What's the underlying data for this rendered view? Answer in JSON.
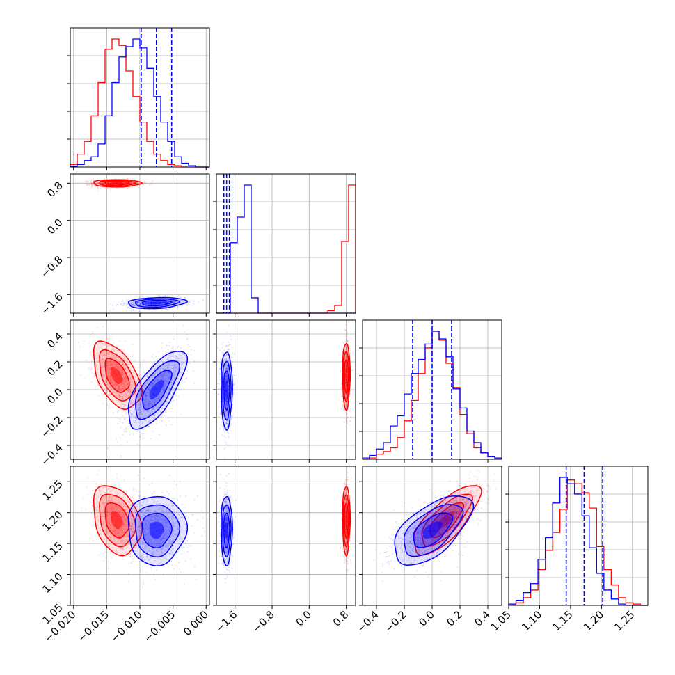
{
  "chart_data": {
    "type": "corner",
    "parameters": 4,
    "grid": true,
    "colors": {
      "series_a": "#0000ff",
      "series_b": "#ff0000"
    },
    "series": [
      {
        "color": "#0000ff",
        "means": [
          -0.0075,
          -1.78,
          0.0,
          1.172
        ],
        "sds": [
          0.0022,
          0.06,
          0.14,
          0.028
        ],
        "quantile_lines": true
      },
      {
        "color": "#ff0000",
        "means": [
          -0.0135,
          0.8,
          0.1,
          1.188
        ],
        "sds": [
          0.0018,
          0.04,
          0.12,
          0.028
        ],
        "quantile_lines": false
      }
    ],
    "quantiles": [
      [
        -0.0098,
        -0.0075,
        -0.0052
      ],
      [
        -1.84,
        -1.78,
        -1.72
      ],
      [
        -0.14,
        0.0,
        0.14
      ],
      [
        1.143,
        1.172,
        1.202
      ]
    ],
    "axis_ranges": [
      [
        -0.0205,
        0.0005
      ],
      [
        -2.0,
        1.0
      ],
      [
        -0.5,
        0.5
      ],
      [
        1.05,
        1.275
      ]
    ],
    "tick_labels": [
      [
        "−0.020",
        "−0.015",
        "−0.010",
        "−0.005",
        "0.000"
      ],
      [
        "−1.6",
        "−0.8",
        "0.0",
        "0.8"
      ],
      [
        "−0.4",
        "−0.2",
        "0.0",
        "0.2",
        "0.4"
      ],
      [
        "1.05",
        "1.10",
        "1.15",
        "1.20",
        "1.25"
      ]
    ],
    "tick_values": [
      [
        -0.02,
        -0.015,
        -0.01,
        -0.005,
        0.0
      ],
      [
        -1.6,
        -0.8,
        0.0,
        0.8
      ],
      [
        -0.4,
        -0.2,
        0.0,
        0.2,
        0.4
      ],
      [
        1.05,
        1.1,
        1.15,
        1.2,
        1.25
      ]
    ],
    "marginal_histograms": {
      "blue_p1": [
        0.005,
        0.02,
        0.05,
        0.08,
        0.18,
        0.4,
        0.66,
        0.86,
        0.94,
        1.0,
        0.93,
        0.77,
        0.55,
        0.35,
        0.2,
        0.08,
        0.03,
        0.01,
        0.0,
        0.0
      ],
      "red_p1": [
        0.02,
        0.1,
        0.2,
        0.4,
        0.66,
        0.92,
        1.0,
        0.95,
        0.75,
        0.55,
        0.35,
        0.2,
        0.1,
        0.05,
        0.02,
        0.01,
        0.0,
        0.0,
        0.0,
        0.0
      ],
      "blue_p2": [
        0.0,
        0.0,
        0.55,
        0.75,
        1.0,
        0.12,
        0.0,
        0.0,
        0.0,
        0.0,
        0.0,
        0.0,
        0.0,
        0.0,
        0.0,
        0.0,
        0.0,
        0.0,
        0.0,
        0.0
      ],
      "red_p2": [
        0.0,
        0.0,
        0.0,
        0.0,
        0.0,
        0.0,
        0.0,
        0.0,
        0.0,
        0.0,
        0.0,
        0.0,
        0.0,
        0.0,
        0.0,
        0.0,
        0.02,
        0.06,
        0.56,
        1.0
      ],
      "blue_p3": [
        0.01,
        0.03,
        0.08,
        0.13,
        0.26,
        0.34,
        0.51,
        0.67,
        0.78,
        0.9,
        1.0,
        0.94,
        0.8,
        0.55,
        0.4,
        0.22,
        0.13,
        0.05,
        0.02,
        0.01
      ],
      "red_p3": [
        0.0,
        0.01,
        0.04,
        0.06,
        0.09,
        0.17,
        0.3,
        0.46,
        0.67,
        0.87,
        1.0,
        0.93,
        0.75,
        0.56,
        0.35,
        0.2,
        0.09,
        0.05,
        0.02,
        0.01
      ],
      "blue_p4": [
        0.01,
        0.04,
        0.1,
        0.17,
        0.36,
        0.53,
        0.8,
        1.0,
        0.95,
        0.87,
        0.7,
        0.45,
        0.25,
        0.12,
        0.05,
        0.01,
        0.0,
        0.0,
        0.0
      ],
      "red_p4": [
        0.01,
        0.02,
        0.06,
        0.12,
        0.28,
        0.43,
        0.57,
        0.75,
        0.98,
        0.95,
        0.88,
        0.76,
        0.46,
        0.28,
        0.16,
        0.06,
        0.02,
        0.01,
        0.0
      ]
    }
  }
}
